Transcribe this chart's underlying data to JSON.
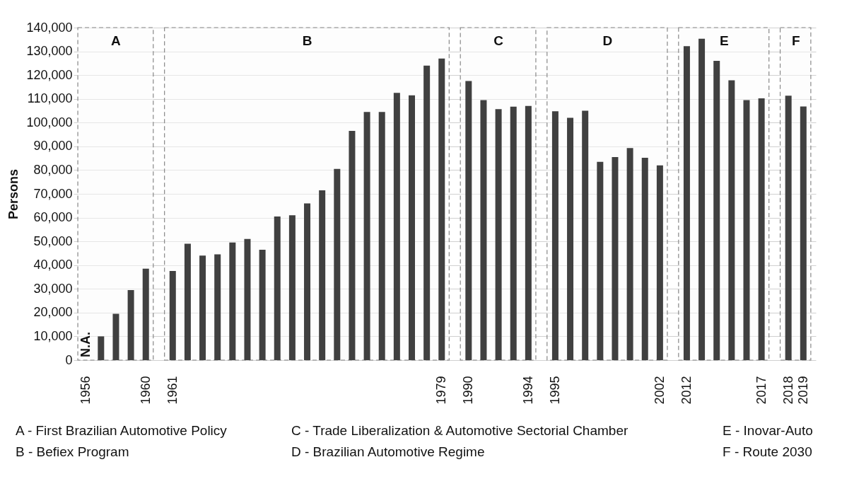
{
  "chart_data": {
    "type": "bar",
    "ylabel": "Persons",
    "categories": [
      "1956",
      null,
      null,
      null,
      "1960",
      "1961",
      null,
      null,
      null,
      null,
      null,
      null,
      null,
      null,
      null,
      null,
      null,
      null,
      null,
      null,
      null,
      null,
      null,
      "1979",
      "1990",
      null,
      null,
      null,
      "1994",
      "1995",
      null,
      null,
      null,
      null,
      null,
      null,
      "2002",
      "2012",
      null,
      null,
      null,
      null,
      "2017",
      "2018",
      "2019"
    ],
    "values": [
      null,
      10000,
      19500,
      29500,
      38500,
      37500,
      49000,
      44000,
      44500,
      49500,
      51000,
      46500,
      60500,
      61000,
      66000,
      71500,
      80500,
      96500,
      104500,
      104500,
      112500,
      111500,
      124000,
      127000,
      117500,
      109500,
      105700,
      106700,
      107000,
      104800,
      102000,
      105000,
      83500,
      85500,
      89300,
      85200,
      82000,
      132200,
      135300,
      126000,
      117800,
      109500,
      110200,
      111300,
      106800
    ],
    "color": "#404040",
    "ylim": [
      0,
      140000
    ],
    "yticks": [
      0,
      {
        "value": 10000,
        "label": "10,000"
      },
      {
        "value": 20000,
        "label": "20,000"
      },
      {
        "value": 30000,
        "label": "30,000"
      },
      {
        "value": 40000,
        "label": "40,000"
      },
      {
        "value": 50000,
        "label": "50,000"
      },
      {
        "value": 60000,
        "label": "60,000"
      },
      {
        "value": 70000,
        "label": "70,000"
      },
      {
        "value": 80000,
        "label": "80,000"
      },
      {
        "value": 90000,
        "label": "90,000"
      },
      {
        "value": 100000,
        "label": "100,000"
      },
      {
        "value": 110000,
        "label": "110,000"
      },
      {
        "value": 120000,
        "label": "120,000"
      },
      {
        "value": 130000,
        "label": "130,000"
      },
      {
        "value": 140000,
        "label": "140,000"
      }
    ],
    "grid": "y",
    "bands": [
      {
        "axis": "x",
        "from": "1956",
        "to": "1960",
        "label": "A"
      },
      {
        "axis": "x",
        "from": "1961",
        "to": "1979",
        "label": "B"
      },
      {
        "axis": "x",
        "from": "1990",
        "to": "1994",
        "label": "C"
      },
      {
        "axis": "x",
        "from": "1995",
        "to": "2002",
        "label": "D"
      },
      {
        "axis": "x",
        "from": "2012",
        "to": "2017",
        "label": "E"
      },
      {
        "axis": "x",
        "from": "2018",
        "to": "2019",
        "label": "F"
      }
    ],
    "annotations": [
      "N.A.",
      "A - First Brazilian Automotive Policy",
      "B - Befiex Program",
      "C - Trade Liberalization & Automotive Sectorial Chamber",
      "D - Brazilian Automotive Regime",
      "E - Inovar-Auto",
      "F - Route 2030"
    ]
  }
}
